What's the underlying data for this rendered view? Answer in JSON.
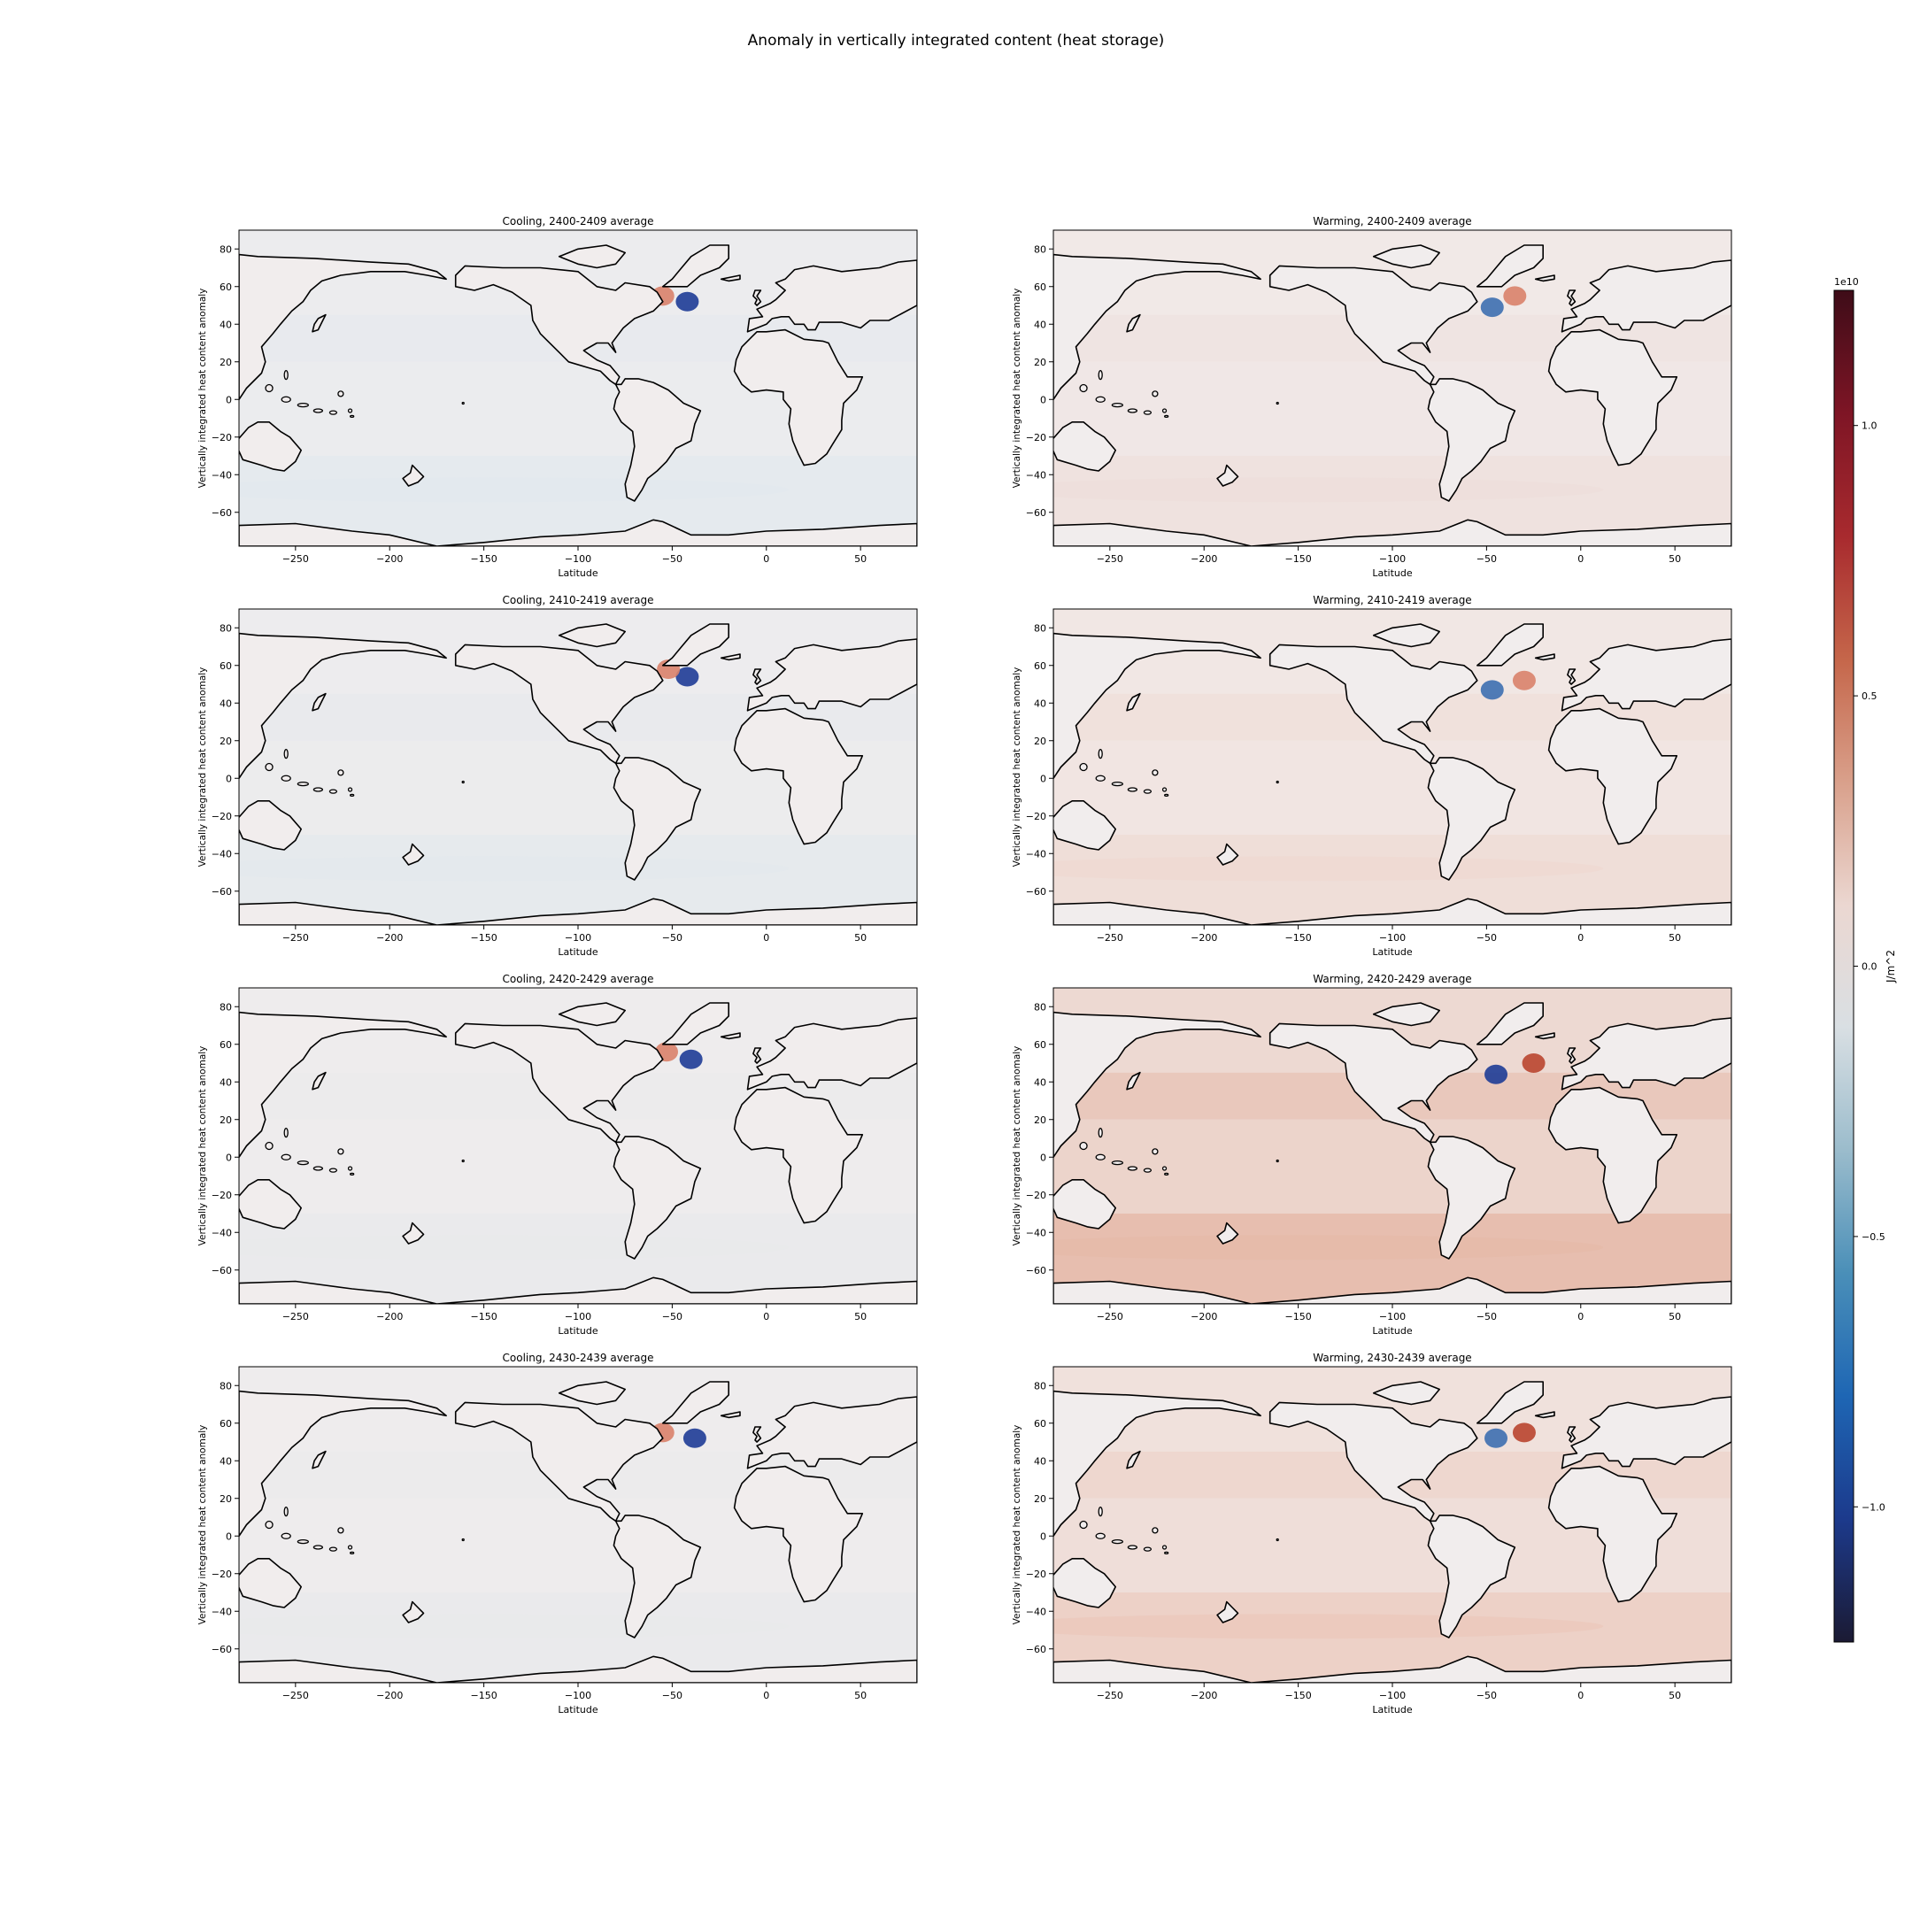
{
  "figure": {
    "suptitle": "Anomaly in vertically integrated content (heat storage)"
  },
  "chart_data": [
    {
      "type": "heatmap",
      "title": "Cooling, 2400-2409 average",
      "xlabel": "Latitude",
      "ylabel": "Vertically integrated heat content anomaly",
      "xlim": [
        -280,
        80
      ],
      "ylim": [
        -78,
        90
      ],
      "xticks": [
        -250,
        -200,
        -150,
        -100,
        -50,
        0,
        50
      ],
      "yticks": [
        80,
        60,
        40,
        20,
        0,
        -20,
        -40,
        -60
      ],
      "tint": "#dbe6ee",
      "intensity": 0.55,
      "features": [
        {
          "x": -42,
          "y": 52,
          "value": -1.0
        },
        {
          "x": -55,
          "y": 55,
          "value": 0.3
        }
      ]
    },
    {
      "type": "heatmap",
      "title": "Warming, 2400-2409 average",
      "xlabel": "Latitude",
      "ylabel": "Vertically integrated heat content anomaly",
      "xlim": [
        -280,
        80
      ],
      "ylim": [
        -78,
        90
      ],
      "xticks": [
        -250,
        -200,
        -150,
        -100,
        -50,
        0,
        50
      ],
      "yticks": [
        80,
        60,
        40,
        20,
        0,
        -20,
        -40,
        -60
      ],
      "tint": "#ecd8d2",
      "intensity": 0.55,
      "features": [
        {
          "x": -47,
          "y": 49,
          "value": -0.9
        },
        {
          "x": -35,
          "y": 55,
          "value": 0.3
        }
      ]
    },
    {
      "type": "heatmap",
      "title": "Cooling, 2410-2419 average",
      "xlabel": "Latitude",
      "ylabel": "Vertically integrated heat content anomaly",
      "xlim": [
        -280,
        80
      ],
      "ylim": [
        -78,
        90
      ],
      "xticks": [
        -250,
        -200,
        -150,
        -100,
        -50,
        0,
        50
      ],
      "yticks": [
        80,
        60,
        40,
        20,
        0,
        -20,
        -40,
        -60
      ],
      "tint": "#dde6ec",
      "intensity": 0.55,
      "features": [
        {
          "x": -42,
          "y": 54,
          "value": -1.0
        },
        {
          "x": -52,
          "y": 58,
          "value": 0.4
        }
      ]
    },
    {
      "type": "heatmap",
      "title": "Warming, 2410-2419 average",
      "xlabel": "Latitude",
      "ylabel": "Vertically integrated heat content anomaly",
      "xlim": [
        -280,
        80
      ],
      "ylim": [
        -78,
        90
      ],
      "xticks": [
        -250,
        -200,
        -150,
        -100,
        -50,
        0,
        50
      ],
      "yticks": [
        80,
        60,
        40,
        20,
        0,
        -20,
        -40,
        -60
      ],
      "tint": "#eed5cc",
      "intensity": 0.65,
      "features": [
        {
          "x": -47,
          "y": 47,
          "value": -0.9
        },
        {
          "x": -30,
          "y": 52,
          "value": 0.4
        }
      ]
    },
    {
      "type": "heatmap",
      "title": "Cooling, 2420-2429 average",
      "xlabel": "Latitude",
      "ylabel": "Vertically integrated heat content anomaly",
      "xlim": [
        -280,
        80
      ],
      "ylim": [
        -78,
        90
      ],
      "xticks": [
        -250,
        -200,
        -150,
        -100,
        -50,
        0,
        50
      ],
      "yticks": [
        80,
        60,
        40,
        20,
        0,
        -20,
        -40,
        -60
      ],
      "tint": "#e2e6ea",
      "intensity": 0.5,
      "features": [
        {
          "x": -40,
          "y": 52,
          "value": -1.0
        },
        {
          "x": -53,
          "y": 56,
          "value": 0.4
        }
      ]
    },
    {
      "type": "heatmap",
      "title": "Warming, 2420-2429 average",
      "xlabel": "Latitude",
      "ylabel": "Vertically integrated heat content anomaly",
      "xlim": [
        -280,
        80
      ],
      "ylim": [
        -78,
        90
      ],
      "xticks": [
        -250,
        -200,
        -150,
        -100,
        -50,
        0,
        50
      ],
      "yticks": [
        80,
        60,
        40,
        20,
        0,
        -20,
        -40,
        -60
      ],
      "tint": "#e6b9a8",
      "intensity": 0.9,
      "features": [
        {
          "x": -45,
          "y": 44,
          "value": -1.0
        },
        {
          "x": -25,
          "y": 50,
          "value": 0.6
        }
      ]
    },
    {
      "type": "heatmap",
      "title": "Cooling, 2430-2439 average",
      "xlabel": "Latitude",
      "ylabel": "Vertically integrated heat content anomaly",
      "xlim": [
        -280,
        80
      ],
      "ylim": [
        -78,
        90
      ],
      "xticks": [
        -250,
        -200,
        -150,
        -100,
        -50,
        0,
        50
      ],
      "yticks": [
        80,
        60,
        40,
        20,
        0,
        -20,
        -40,
        -60
      ],
      "tint": "#e2e6ea",
      "intensity": 0.5,
      "features": [
        {
          "x": -38,
          "y": 52,
          "value": -1.1
        },
        {
          "x": -55,
          "y": 55,
          "value": 0.4
        }
      ]
    },
    {
      "type": "heatmap",
      "title": "Warming, 2430-2439 average",
      "xlabel": "Latitude",
      "ylabel": "Vertically integrated heat content anomaly",
      "xlim": [
        -280,
        80
      ],
      "ylim": [
        -78,
        90
      ],
      "xticks": [
        -250,
        -200,
        -150,
        -100,
        -50,
        0,
        50
      ],
      "yticks": [
        80,
        60,
        40,
        20,
        0,
        -20,
        -40,
        -60
      ],
      "tint": "#ebc7ba",
      "intensity": 0.75,
      "features": [
        {
          "x": -45,
          "y": 52,
          "value": -0.8
        },
        {
          "x": -30,
          "y": 55,
          "value": 0.6
        }
      ]
    }
  ],
  "colorbar": {
    "label": "J/m^2",
    "offset_text": "1e10",
    "range": [
      -1.25,
      1.25
    ],
    "ticks": [
      {
        "value": 1.0,
        "label": "1.0"
      },
      {
        "value": 0.5,
        "label": "0.5"
      },
      {
        "value": 0.0,
        "label": "0.0"
      },
      {
        "value": -0.5,
        "label": "−0.5"
      },
      {
        "value": -1.0,
        "label": "−1.0"
      }
    ],
    "colors": [
      "#1b1a33",
      "#1c3a8c",
      "#1e66b4",
      "#4a8fb8",
      "#9bbccc",
      "#d9dfe3",
      "#ebd7d1",
      "#d9a08b",
      "#c5664a",
      "#a82a2e",
      "#7e1525",
      "#3e0c18"
    ]
  }
}
